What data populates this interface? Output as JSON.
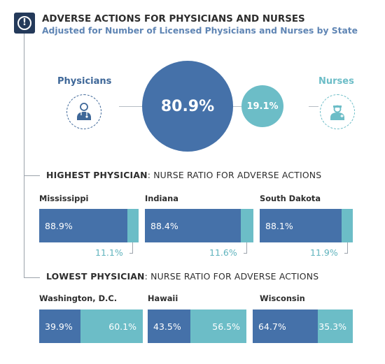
{
  "header": {
    "icon": "exclamation-icon",
    "icon_glyph": "!",
    "title": "ADVERSE ACTIONS FOR PHYSICIANS AND NURSES",
    "subtitle": "Adjusted for Number of Licensed Physicians and Nurses by State"
  },
  "colors": {
    "physician": "#4571a9",
    "nurse": "#6cbdc7",
    "dark": "#243a5a"
  },
  "chart_data": [
    {
      "type": "bubble",
      "series": [
        {
          "name": "Physicians",
          "value": 80.9,
          "label": "80.9%"
        },
        {
          "name": "Nurses",
          "value": 19.1,
          "label": "19.1%"
        }
      ]
    },
    {
      "type": "bar",
      "stacked": true,
      "title_bold": "HIGHEST PHYSICIAN",
      "title_rest": ": NURSE RATIO FOR ADVERSE ACTIONS",
      "categories": [
        "Mississippi",
        "Indiana",
        "South Dakota"
      ],
      "series": [
        {
          "name": "Physicians",
          "values": [
            88.9,
            88.4,
            88.1
          ],
          "labels": [
            "88.9%",
            "88.4%",
            "88.1%"
          ]
        },
        {
          "name": "Nurses",
          "values": [
            11.1,
            11.6,
            11.9
          ],
          "labels": [
            "11.1%",
            "11.6%",
            "11.9%"
          ]
        }
      ]
    },
    {
      "type": "bar",
      "stacked": true,
      "title_bold": "LOWEST PHYSICIAN",
      "title_rest": ": NURSE RATIO FOR ADVERSE ACTIONS",
      "categories": [
        "Washington, D.C.",
        "Hawaii",
        "Wisconsin"
      ],
      "series": [
        {
          "name": "Physicians",
          "values": [
            39.9,
            43.5,
            64.7
          ],
          "labels": [
            "39.9%",
            "43.5%",
            "64.7%"
          ]
        },
        {
          "name": "Nurses",
          "values": [
            60.1,
            56.5,
            35.3
          ],
          "labels": [
            "60.1%",
            "56.5%",
            "35.3%"
          ]
        }
      ]
    }
  ]
}
